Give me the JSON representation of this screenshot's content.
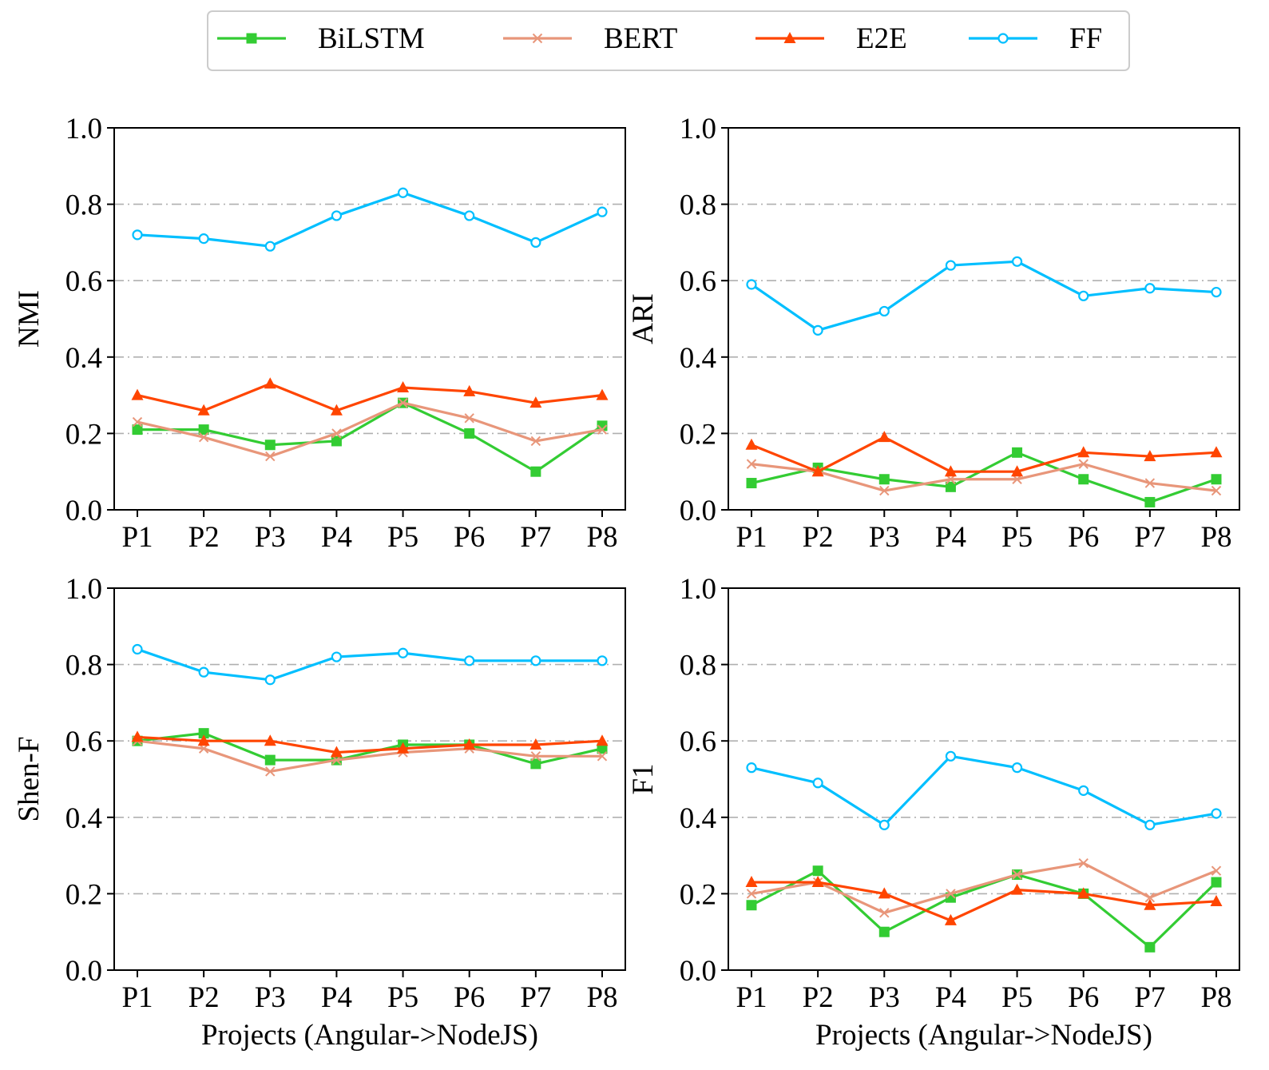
{
  "legend": [
    {
      "name": "BiLSTM",
      "color": "#33cc33",
      "marker": "square"
    },
    {
      "name": "BERT",
      "color": "#e8967a",
      "marker": "x"
    },
    {
      "name": "E2E",
      "color": "#ff4500",
      "marker": "triangle"
    },
    {
      "name": "FF",
      "color": "#00bfff",
      "marker": "circle"
    }
  ],
  "chart_data": [
    {
      "type": "line",
      "ylabel": "NMI",
      "xlabel": "",
      "categories": [
        "P1",
        "P2",
        "P3",
        "P4",
        "P5",
        "P6",
        "P7",
        "P8"
      ],
      "ylim": [
        0.0,
        1.0
      ],
      "yticks": [
        "0.0",
        "0.2",
        "0.4",
        "0.6",
        "0.8",
        "1.0"
      ],
      "grid": "horizontal dash-dot",
      "series": [
        {
          "name": "BiLSTM",
          "values": [
            0.21,
            0.21,
            0.17,
            0.18,
            0.28,
            0.2,
            0.1,
            0.22
          ]
        },
        {
          "name": "BERT",
          "values": [
            0.23,
            0.19,
            0.14,
            0.2,
            0.28,
            0.24,
            0.18,
            0.21
          ]
        },
        {
          "name": "E2E",
          "values": [
            0.3,
            0.26,
            0.33,
            0.26,
            0.32,
            0.31,
            0.28,
            0.3
          ]
        },
        {
          "name": "FF",
          "values": [
            0.72,
            0.71,
            0.69,
            0.77,
            0.83,
            0.77,
            0.7,
            0.78
          ]
        }
      ]
    },
    {
      "type": "line",
      "ylabel": "ARI",
      "xlabel": "",
      "categories": [
        "P1",
        "P2",
        "P3",
        "P4",
        "P5",
        "P6",
        "P7",
        "P8"
      ],
      "ylim": [
        0.0,
        1.0
      ],
      "yticks": [
        "0.0",
        "0.2",
        "0.4",
        "0.6",
        "0.8",
        "1.0"
      ],
      "grid": "horizontal dash-dot",
      "series": [
        {
          "name": "BiLSTM",
          "values": [
            0.07,
            0.11,
            0.08,
            0.06,
            0.15,
            0.08,
            0.02,
            0.08
          ]
        },
        {
          "name": "BERT",
          "values": [
            0.12,
            0.1,
            0.05,
            0.08,
            0.08,
            0.12,
            0.07,
            0.05
          ]
        },
        {
          "name": "E2E",
          "values": [
            0.17,
            0.1,
            0.19,
            0.1,
            0.1,
            0.15,
            0.14,
            0.15
          ]
        },
        {
          "name": "FF",
          "values": [
            0.59,
            0.47,
            0.52,
            0.64,
            0.65,
            0.56,
            0.58,
            0.57
          ]
        }
      ]
    },
    {
      "type": "line",
      "ylabel": "Shen-F",
      "xlabel": "Projects (Angular->NodeJS)",
      "categories": [
        "P1",
        "P2",
        "P3",
        "P4",
        "P5",
        "P6",
        "P7",
        "P8"
      ],
      "ylim": [
        0.0,
        1.0
      ],
      "yticks": [
        "0.0",
        "0.2",
        "0.4",
        "0.6",
        "0.8",
        "1.0"
      ],
      "grid": "horizontal dash-dot",
      "series": [
        {
          "name": "BiLSTM",
          "values": [
            0.6,
            0.62,
            0.55,
            0.55,
            0.59,
            0.59,
            0.54,
            0.58
          ]
        },
        {
          "name": "BERT",
          "values": [
            0.6,
            0.58,
            0.52,
            0.55,
            0.57,
            0.58,
            0.56,
            0.56
          ]
        },
        {
          "name": "E2E",
          "values": [
            0.61,
            0.6,
            0.6,
            0.57,
            0.58,
            0.59,
            0.59,
            0.6
          ]
        },
        {
          "name": "FF",
          "values": [
            0.84,
            0.78,
            0.76,
            0.82,
            0.83,
            0.81,
            0.81,
            0.81
          ]
        }
      ]
    },
    {
      "type": "line",
      "ylabel": "F1",
      "xlabel": "Projects (Angular->NodeJS)",
      "categories": [
        "P1",
        "P2",
        "P3",
        "P4",
        "P5",
        "P6",
        "P7",
        "P8"
      ],
      "ylim": [
        0.0,
        1.0
      ],
      "yticks": [
        "0.0",
        "0.2",
        "0.4",
        "0.6",
        "0.8",
        "1.0"
      ],
      "grid": "horizontal dash-dot",
      "series": [
        {
          "name": "BiLSTM",
          "values": [
            0.17,
            0.26,
            0.1,
            0.19,
            0.25,
            0.2,
            0.06,
            0.23
          ]
        },
        {
          "name": "BERT",
          "values": [
            0.2,
            0.23,
            0.15,
            0.2,
            0.25,
            0.28,
            0.19,
            0.26
          ]
        },
        {
          "name": "E2E",
          "values": [
            0.23,
            0.23,
            0.2,
            0.13,
            0.21,
            0.2,
            0.17,
            0.18
          ]
        },
        {
          "name": "FF",
          "values": [
            0.53,
            0.49,
            0.38,
            0.56,
            0.53,
            0.47,
            0.38,
            0.41
          ]
        }
      ]
    }
  ]
}
